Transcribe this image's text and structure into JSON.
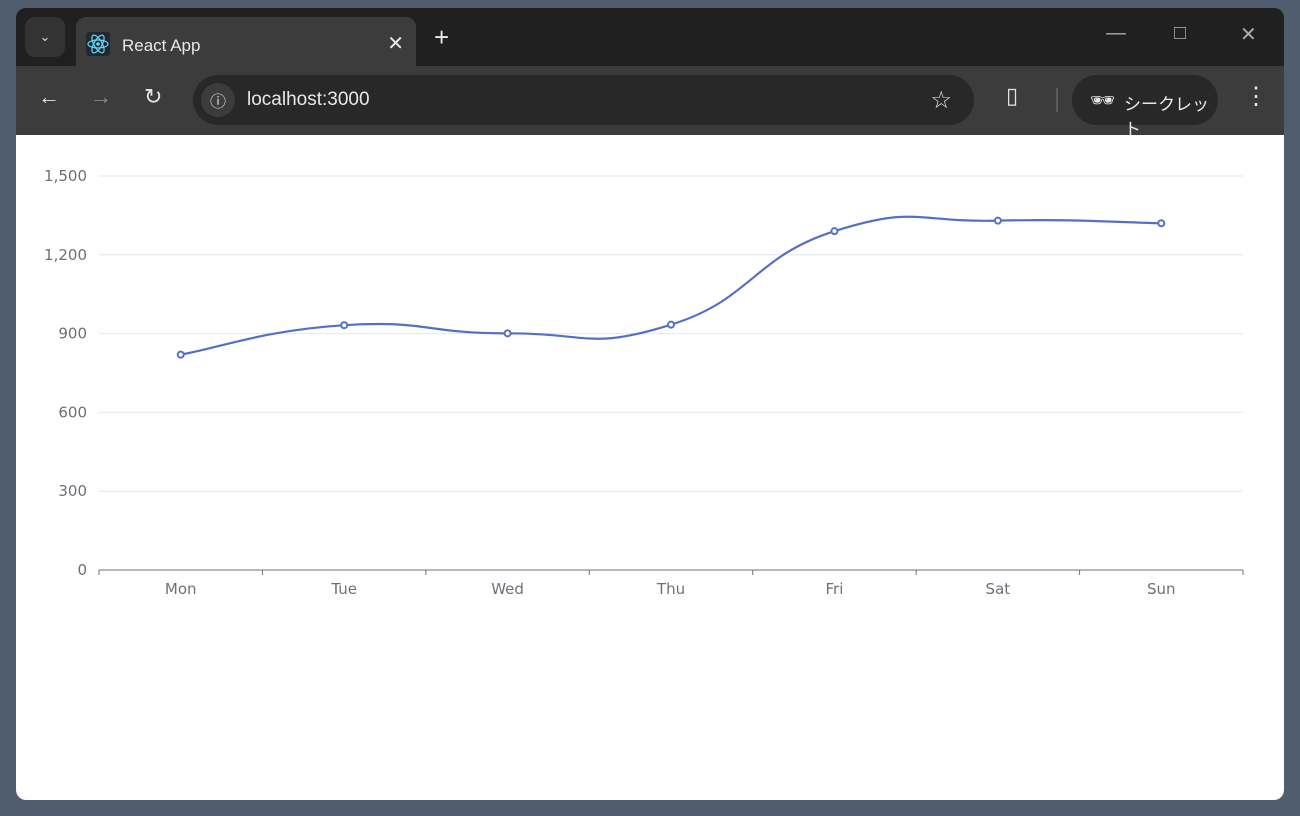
{
  "browser": {
    "tab_title": "React App",
    "url": "localhost:3000",
    "incognito_label": "シークレット"
  },
  "icons": [
    "tab-list-icon",
    "react-icon",
    "close-icon",
    "plus-icon",
    "minimize-icon",
    "maximize-icon",
    "back-icon",
    "forward-icon",
    "reload-icon",
    "info-icon",
    "star-icon",
    "extensions-icon",
    "incognito-icon",
    "more-icon"
  ],
  "colors": {
    "series": "#5470c6",
    "grid": "#e0e6f1",
    "axis": "#6e7079"
  },
  "chart_data": {
    "type": "line",
    "smooth": true,
    "categories": [
      "Mon",
      "Tue",
      "Wed",
      "Thu",
      "Fri",
      "Sat",
      "Sun"
    ],
    "values": [
      820,
      932,
      901,
      934,
      1290,
      1330,
      1320
    ],
    "ylim": [
      0,
      1500
    ],
    "yticks": [
      0,
      300,
      600,
      900,
      1200,
      1500
    ],
    "ytick_labels": [
      "0",
      "300",
      "600",
      "900",
      "1,200",
      "1,500"
    ],
    "grid": true,
    "title": "",
    "xlabel": "",
    "ylabel": ""
  }
}
